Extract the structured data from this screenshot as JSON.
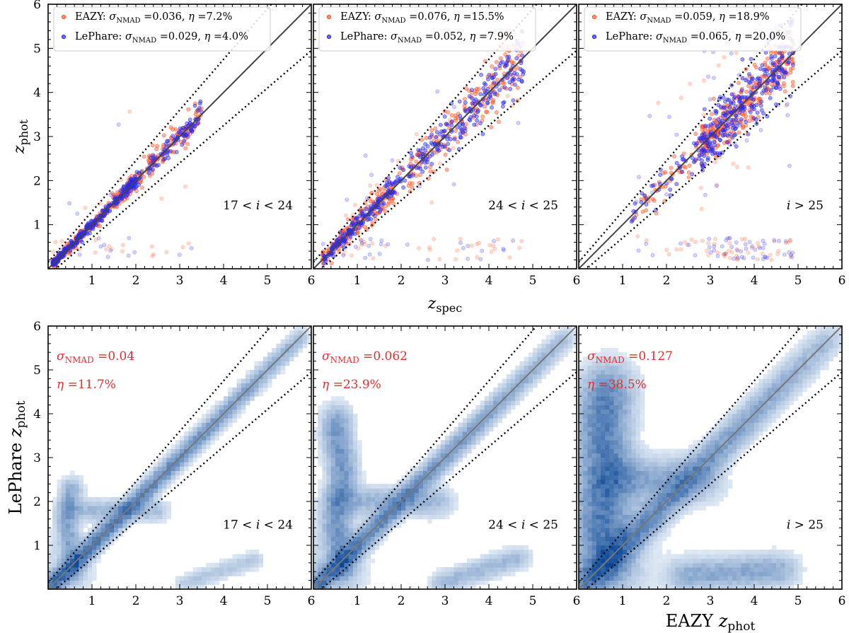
{
  "colors": {
    "eazy": "#ff5a2a",
    "lephare": "#2a2aee",
    "stat": "#e03030",
    "heat_max": "#084594",
    "one_to_one": "#444444"
  },
  "chart_data": [
    {
      "type": "scatter",
      "panel": "top-1",
      "xlim": [
        0,
        6
      ],
      "ylim": [
        0,
        6
      ],
      "xticks": [
        "1",
        "2",
        "3",
        "4",
        "5",
        "6"
      ],
      "yticks": [
        "1",
        "2",
        "3",
        "4",
        "5",
        "6"
      ],
      "xlabel": "",
      "ylabel": "z_phot",
      "range_label": "17 < i < 24",
      "legend_placement": "top-left",
      "series": [
        {
          "name": "EAZY",
          "sigma_nmad": "0.036",
          "eta": "7.2%",
          "z_min": 0.05,
          "z_max": 3.5,
          "outlier_frac": 0.07,
          "scatter": 0.04
        },
        {
          "name": "LePhare",
          "sigma_nmad": "0.029",
          "eta": "4.0%",
          "z_min": 0.05,
          "z_max": 3.5,
          "outlier_frac": 0.04,
          "scatter": 0.03
        }
      ]
    },
    {
      "type": "scatter",
      "panel": "top-2",
      "xlim": [
        0,
        6
      ],
      "ylim": [
        0,
        6
      ],
      "xticks": [
        "1",
        "2",
        "3",
        "4",
        "5",
        "6"
      ],
      "yticks": [],
      "xlabel": "z_spec",
      "ylabel": "",
      "range_label": "24 < i < 25",
      "legend_placement": "top-left",
      "series": [
        {
          "name": "EAZY",
          "sigma_nmad": "0.076",
          "eta": "15.5%",
          "z_min": 0.1,
          "z_max": 4.8,
          "outlier_frac": 0.155,
          "scatter": 0.07
        },
        {
          "name": "LePhare",
          "sigma_nmad": "0.052",
          "eta": "7.9%",
          "z_min": 0.1,
          "z_max": 4.8,
          "outlier_frac": 0.079,
          "scatter": 0.05
        }
      ]
    },
    {
      "type": "scatter",
      "panel": "top-3",
      "xlim": [
        0,
        6
      ],
      "ylim": [
        0,
        6
      ],
      "xticks": [
        "1",
        "2",
        "3",
        "4",
        "5",
        "6"
      ],
      "yticks": [],
      "xlabel": "",
      "ylabel": "",
      "range_label": "i > 25",
      "legend_placement": "top-left",
      "series": [
        {
          "name": "EAZY",
          "sigma_nmad": "0.059",
          "eta": "18.9%",
          "z_min": 1.2,
          "z_max": 4.9,
          "outlier_frac": 0.189,
          "scatter": 0.06
        },
        {
          "name": "LePhare",
          "sigma_nmad": "0.065",
          "eta": "20.0%",
          "z_min": 1.2,
          "z_max": 4.9,
          "outlier_frac": 0.2,
          "scatter": 0.065
        }
      ]
    },
    {
      "type": "heatmap",
      "panel": "bottom-1",
      "xlim": [
        0,
        6
      ],
      "ylim": [
        0,
        6
      ],
      "xticks": [
        "1",
        "2",
        "3",
        "4",
        "5",
        "6"
      ],
      "yticks": [
        "1",
        "2",
        "3",
        "4",
        "5",
        "6"
      ],
      "xlabel": "",
      "ylabel": "LePhare z_phot",
      "range_label": "17 < i < 24",
      "sigma_nmad": "0.04",
      "eta": "11.7%",
      "components": [
        {
          "kind": "diagonal",
          "x0": 0,
          "x1": 5.8,
          "width": 0.12,
          "weight": 1.0
        },
        {
          "kind": "vertical",
          "x": 0.5,
          "y0": 0.3,
          "y1": 2.4,
          "width": 0.15,
          "weight": 0.4
        },
        {
          "kind": "horizontal",
          "y": 1.8,
          "x0": 0.4,
          "x1": 2.6,
          "width": 0.15,
          "weight": 0.3
        },
        {
          "kind": "band",
          "x0": 3.0,
          "y0": 0.1,
          "x1": 4.8,
          "y1": 0.7,
          "width": 0.12,
          "weight": 0.25
        },
        {
          "kind": "corner",
          "x": 0.3,
          "y": 0.4,
          "r": 0.5,
          "weight": 0.35
        }
      ]
    },
    {
      "type": "heatmap",
      "panel": "bottom-2",
      "xlim": [
        0,
        6
      ],
      "ylim": [
        0,
        6
      ],
      "xticks": [
        "1",
        "2",
        "3",
        "4",
        "5",
        "6"
      ],
      "yticks": [],
      "xlabel": "",
      "ylabel": "",
      "range_label": "24 < i < 25",
      "sigma_nmad": "0.062",
      "eta": "23.9%",
      "components": [
        {
          "kind": "diagonal",
          "x0": 0,
          "x1": 5.8,
          "width": 0.14,
          "weight": 1.0
        },
        {
          "kind": "vertical",
          "x": 0.6,
          "y0": 0.3,
          "y1": 4.0,
          "width": 0.2,
          "weight": 0.55
        },
        {
          "kind": "horizontal",
          "y": 2.0,
          "x0": 0.4,
          "x1": 3.0,
          "width": 0.2,
          "weight": 0.35
        },
        {
          "kind": "band",
          "x0": 2.8,
          "y0": 0.1,
          "x1": 4.8,
          "y1": 0.75,
          "width": 0.15,
          "weight": 0.5
        },
        {
          "kind": "corner",
          "x": 0.3,
          "y": 0.5,
          "r": 0.6,
          "weight": 0.5
        }
      ]
    },
    {
      "type": "heatmap",
      "panel": "bottom-3",
      "xlim": [
        0,
        6
      ],
      "ylim": [
        0,
        6
      ],
      "xticks": [
        "1",
        "2",
        "3",
        "4",
        "5",
        "6"
      ],
      "yticks": [],
      "xlabel": "EAZY z_phot",
      "ylabel": "",
      "range_label": "i > 25",
      "sigma_nmad": "0.127",
      "eta": "38.5%",
      "components": [
        {
          "kind": "diagonal",
          "x0": 0,
          "x1": 5.8,
          "width": 0.2,
          "weight": 1.0
        },
        {
          "kind": "vertical",
          "x": 0.6,
          "y0": 0.3,
          "y1": 4.8,
          "width": 0.35,
          "weight": 0.7
        },
        {
          "kind": "horizontal",
          "y": 2.5,
          "x0": 0.3,
          "x1": 3.0,
          "width": 0.3,
          "weight": 0.45
        },
        {
          "kind": "band",
          "x0": 2.2,
          "y0": 0.3,
          "x1": 4.8,
          "y1": 0.45,
          "width": 0.22,
          "weight": 0.9
        },
        {
          "kind": "corner",
          "x": 0.4,
          "y": 0.6,
          "r": 0.9,
          "weight": 0.7
        }
      ]
    }
  ]
}
